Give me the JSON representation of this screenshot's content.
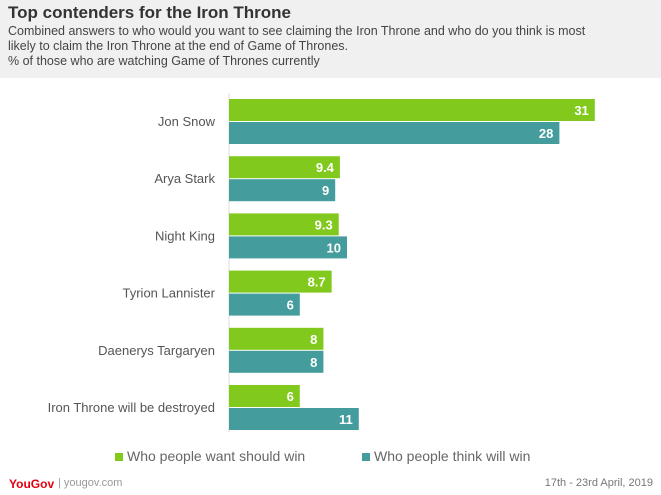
{
  "header": {
    "title": "Top contenders for the Iron Throne",
    "subtitle_line1": "Combined answers to who would you want to see claiming the Iron Throne and who do you think is most",
    "subtitle_line2": "likely to claim the Iron Throne at the end of Game of Thrones.",
    "subtitle_line3": "%  of those who are watching Game of Thrones currently"
  },
  "chart_data": {
    "type": "bar",
    "orientation": "horizontal",
    "categories": [
      "Jon Snow",
      "Arya Stark",
      "Night King",
      "Tyrion Lannister",
      "Daenerys Targaryen",
      "Iron Throne will be destroyed"
    ],
    "series": [
      {
        "name": "Who people want should win",
        "color": "#82c91e",
        "values": [
          31,
          9.4,
          9.3,
          8.7,
          8,
          6
        ],
        "labels": [
          "31",
          "9.4",
          "9.3",
          "8.7",
          "8",
          "6"
        ]
      },
      {
        "name": "Who people think will win",
        "color": "#459c9c",
        "values": [
          28,
          9,
          10,
          6,
          8,
          11
        ],
        "labels": [
          "28",
          "9",
          "10",
          "6",
          "8",
          "11"
        ]
      }
    ],
    "legend": "bottom",
    "grid": false
  },
  "footer": {
    "logo": "YouGov",
    "site": "| yougov.com",
    "date": "17th - 23rd April,  2019"
  }
}
